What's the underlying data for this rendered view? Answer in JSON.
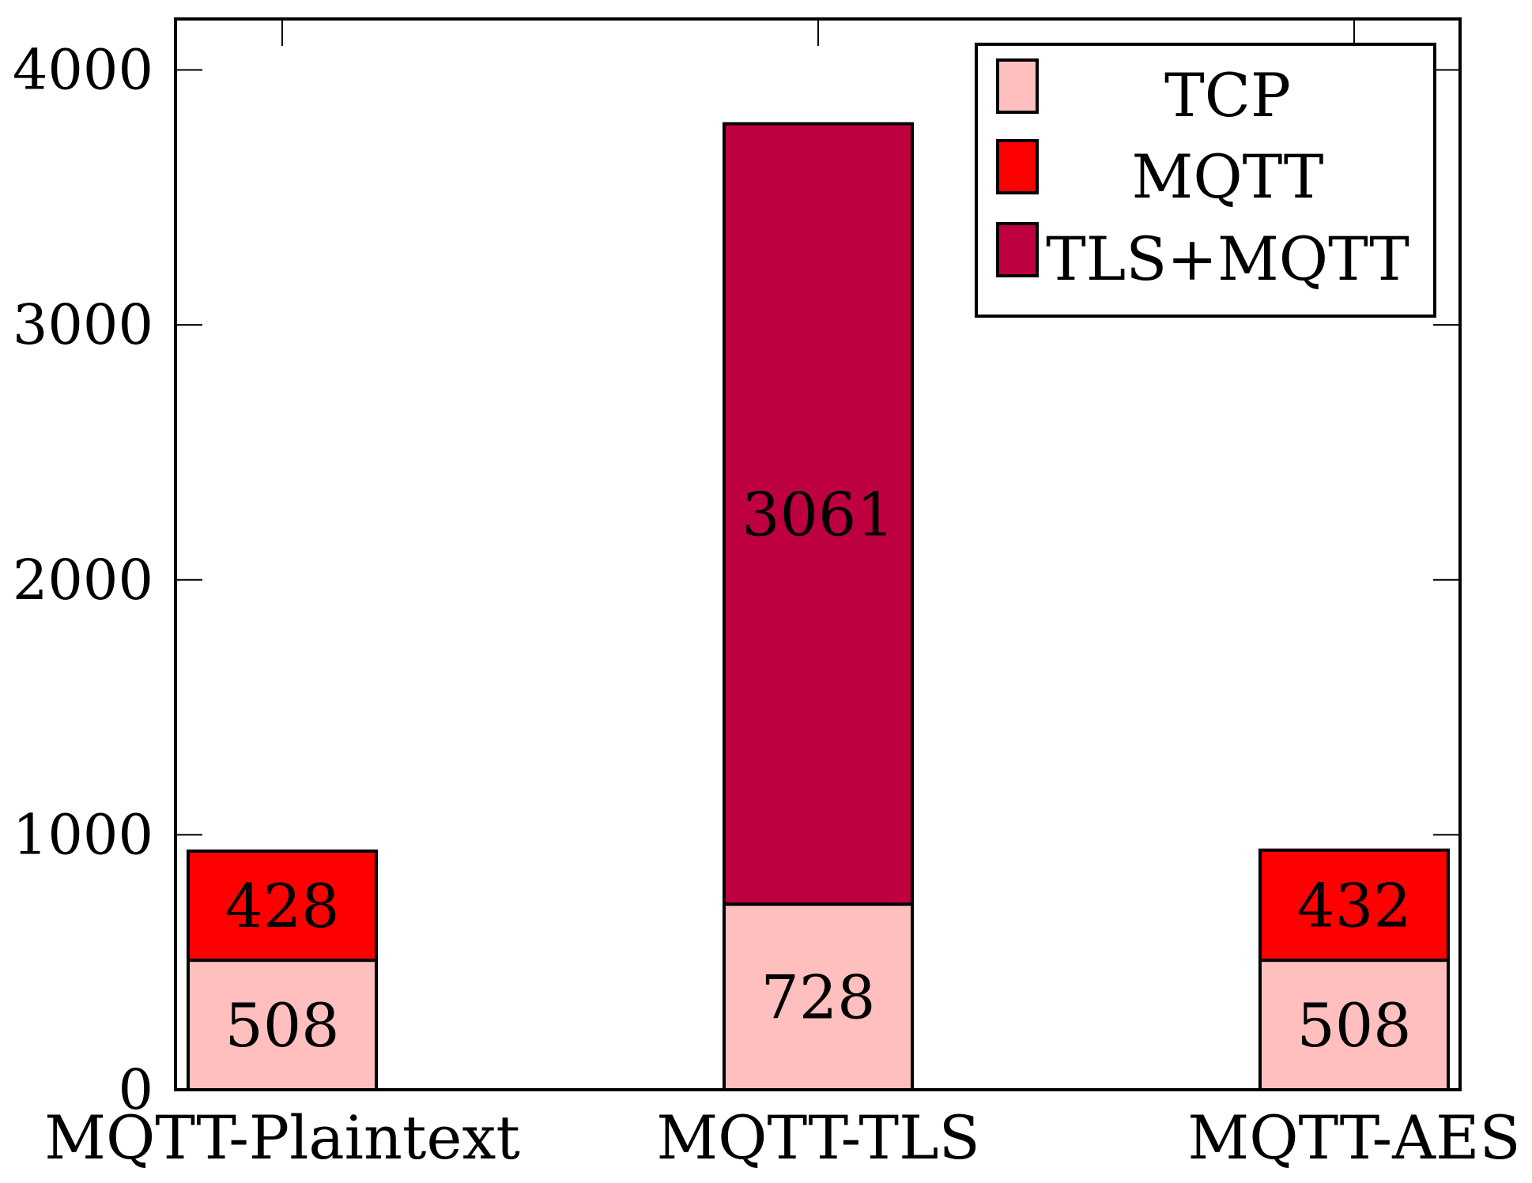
{
  "chart_data": {
    "type": "bar",
    "stacked": true,
    "title": "",
    "xlabel": "",
    "ylabel": "",
    "categories": [
      "MQTT-Plaintext",
      "MQTT-TLS",
      "MQTT-AES"
    ],
    "series": [
      {
        "name": "TCP",
        "color": "#ffbfbf",
        "values": [
          508,
          728,
          508
        ]
      },
      {
        "name": "MQTT",
        "color": "#ff0000",
        "values": [
          428,
          0,
          432
        ]
      },
      {
        "name": "TLS+MQTT",
        "color": "#bf0040",
        "values": [
          0,
          3061,
          0
        ]
      }
    ],
    "ylim": [
      0,
      4200
    ],
    "yticks": [
      0,
      1000,
      2000,
      3000,
      4000
    ],
    "grid": false,
    "legend_position": "top-right",
    "data_labels": true
  }
}
